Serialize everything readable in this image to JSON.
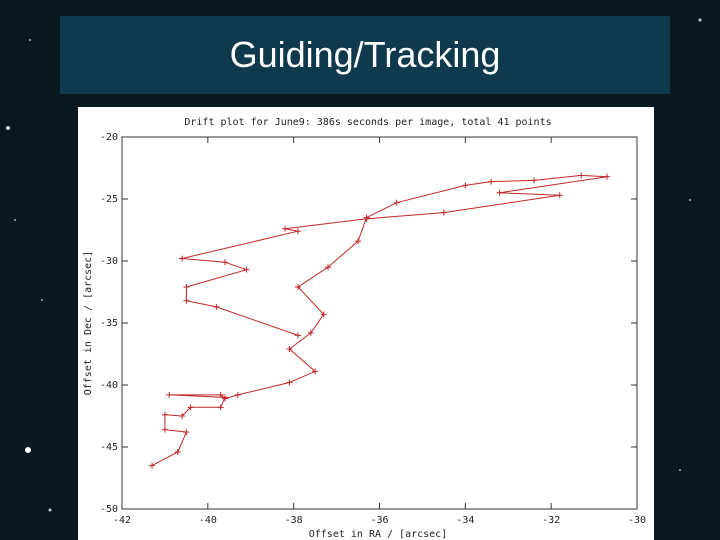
{
  "slide": {
    "title": "Guiding/Tracking"
  },
  "chart_data": {
    "type": "line",
    "title": "Drift plot for June9: 386s seconds per image, total 41 points",
    "x_label": "Offset in RA / [arcsec]",
    "y_label": "Offset in Dec / [arcsec]",
    "x": [
      -41.3,
      -40.7,
      -40.5,
      -41.0,
      -41.0,
      -40.6,
      -40.4,
      -39.7,
      -39.6,
      -40.9,
      -39.7,
      -39.6,
      -39.3,
      -38.1,
      -37.5,
      -38.1,
      -37.6,
      -37.3,
      -37.9,
      -37.2,
      -36.5,
      -36.3,
      -35.6,
      -34.0,
      -33.4,
      -32.4,
      -31.3,
      -30.7,
      -33.2,
      -31.8,
      -34.5,
      -36.3,
      -38.2,
      -37.9,
      -40.6,
      -39.6,
      -39.1,
      -40.5,
      -40.5,
      -39.8,
      -37.9
    ],
    "series": [
      {
        "name": "drift",
        "color": "#c0282a",
        "values": [
          -46.5,
          -45.4,
          -43.8,
          -43.6,
          -42.4,
          -42.5,
          -41.8,
          -41.8,
          -41.0,
          -40.8,
          -40.8,
          -41.1,
          -40.8,
          -39.8,
          -38.9,
          -37.1,
          -35.8,
          -34.3,
          -32.1,
          -30.5,
          -28.4,
          -26.5,
          -25.3,
          -23.9,
          -23.6,
          -23.5,
          -23.1,
          -23.2,
          -24.5,
          -24.7,
          -26.1,
          -26.6,
          -27.4,
          -27.6,
          -29.8,
          -30.1,
          -30.7,
          -32.1,
          -33.2,
          -33.7,
          -36.0
        ]
      }
    ],
    "xlim": [
      -42,
      -30
    ],
    "xticks": [
      -42,
      -40,
      -38,
      -36,
      -34,
      -32,
      -30
    ],
    "ylim": [
      -50,
      -20
    ],
    "yticks": [
      -50,
      -45,
      -40,
      -35,
      -30,
      -25,
      -20
    ]
  }
}
